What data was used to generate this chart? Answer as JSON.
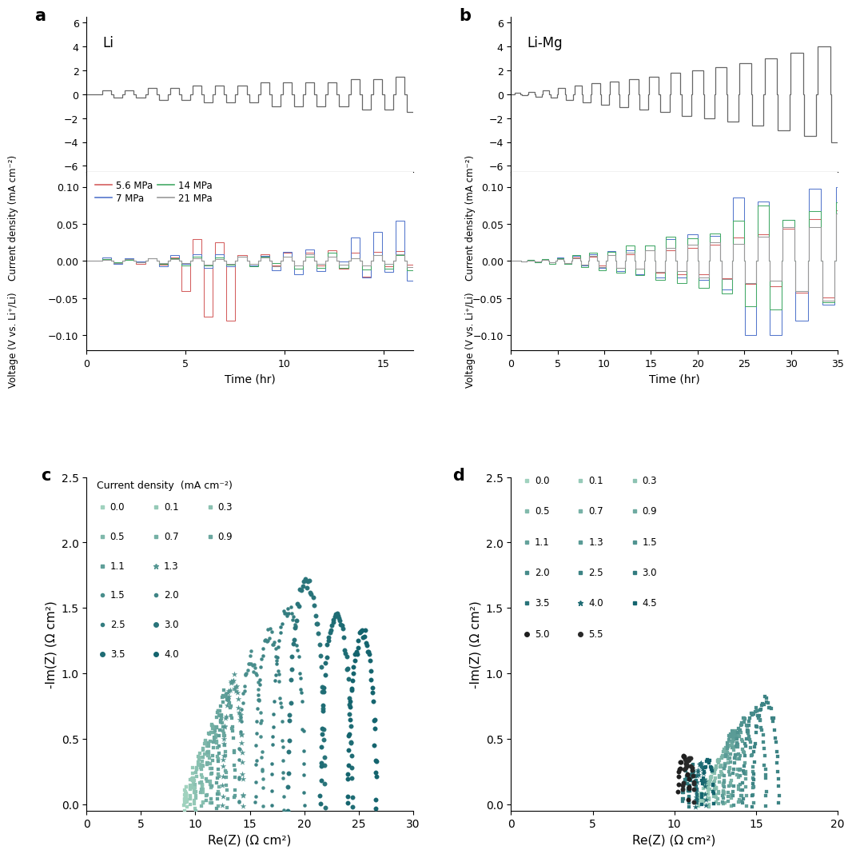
{
  "panel_a_label": "a",
  "panel_b_label": "b",
  "panel_c_label": "c",
  "panel_d_label": "d",
  "li_label": "Li",
  "li_mg_label": "Li-Mg",
  "current_density_ylabel": "Current density (mA cm⁻²)",
  "voltage_ylabel": "Voltage (V vs. Li⁺/Li)",
  "time_xlabel": "Time (hr)",
  "re_z_xlabel": "Re(Z) (Ω cm²)",
  "im_z_ylabel": "-Im(Z) (Ω cm²)",
  "legend_title_c": "Current density  (mA cm⁻²)",
  "mpa_labels": [
    "5.6 MPa",
    "7 MPa",
    "14 MPa",
    "21 MPa"
  ],
  "mpa_colors": [
    "#d45f5f",
    "#5577cc",
    "#44aa66",
    "#999999"
  ],
  "background_color": "#ffffff",
  "fig_width": 10.8,
  "fig_height": 10.91,
  "cd_values_c": [
    0.0,
    0.1,
    0.3,
    0.5,
    0.7,
    0.9,
    1.1,
    1.3,
    1.5,
    2.0,
    2.5,
    3.0,
    3.5,
    4.0
  ],
  "cd_values_d": [
    0.0,
    0.1,
    0.3,
    0.5,
    0.7,
    0.9,
    1.1,
    1.3,
    1.5,
    2.0,
    2.5,
    3.0,
    3.5,
    4.0,
    4.5,
    5.0,
    5.5
  ]
}
